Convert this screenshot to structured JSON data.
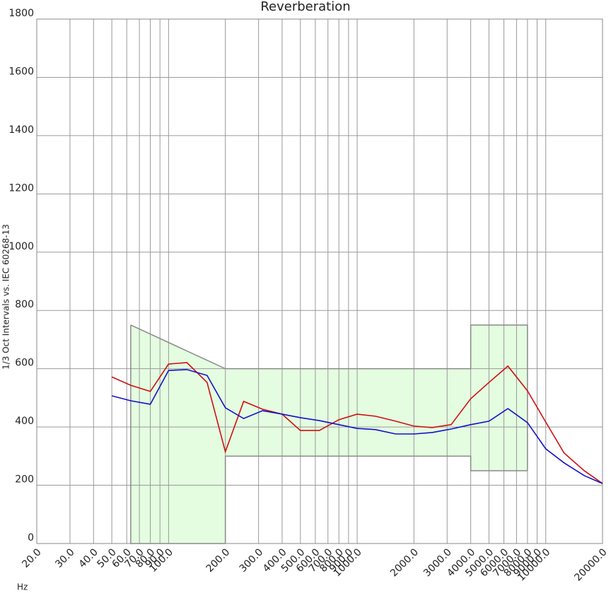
{
  "chart_data": {
    "type": "line",
    "title": "Reverberation",
    "y_label": "1/3 Oct Intervals vs. IEC 60268-13",
    "x_label": "Hz",
    "x": [
      50,
      63,
      80,
      100,
      125,
      160,
      200,
      250,
      315,
      400,
      500,
      630,
      800,
      1000,
      1250,
      1600,
      2000,
      2500,
      3150,
      4000,
      5000,
      6300,
      8000,
      10000,
      12500,
      16000,
      20000
    ],
    "series": [
      {
        "color": "#cc1111",
        "values": [
          572,
          543,
          522,
          616,
          621,
          553,
          315,
          488,
          461,
          444,
          388,
          388,
          425,
          444,
          437,
          420,
          403,
          398,
          408,
          497,
          553,
          609,
          524,
          417,
          311,
          250,
          206
        ]
      },
      {
        "color": "#1111cc",
        "values": [
          507,
          490,
          478,
          594,
          597,
          577,
          466,
          429,
          456,
          444,
          432,
          422,
          408,
          395,
          391,
          376,
          376,
          381,
          393,
          408,
          420,
          463,
          415,
          325,
          277,
          233,
          206
        ]
      }
    ],
    "tolerance_upper": {
      "x": [
        63,
        200,
        4000,
        4000,
        8000,
        8000
      ],
      "values": [
        750,
        600,
        600,
        750,
        750,
        250
      ]
    },
    "tolerance_lower": {
      "x": [
        63,
        63,
        200,
        200,
        4000,
        4000,
        8000
      ],
      "values": [
        750,
        0,
        0,
        300,
        300,
        250,
        250
      ]
    },
    "band_color": "#e4fce0",
    "xlog": true,
    "xlim": [
      20,
      20000
    ],
    "ylim": [
      0,
      1800
    ],
    "xticks": [
      {
        "value": 20,
        "label": "20.0"
      },
      {
        "value": 30,
        "label": "30.0"
      },
      {
        "value": 40,
        "label": "40.0"
      },
      {
        "value": 50,
        "label": "50.0"
      },
      {
        "value": 60,
        "label": "60.0"
      },
      {
        "value": 70,
        "label": "70.0"
      },
      {
        "value": 80,
        "label": "80.0"
      },
      {
        "value": 90,
        "label": "90.0"
      },
      {
        "value": 100,
        "label": "100.0"
      },
      {
        "value": 200,
        "label": "200.0"
      },
      {
        "value": 300,
        "label": "300.0"
      },
      {
        "value": 400,
        "label": "400.0"
      },
      {
        "value": 500,
        "label": "500.0"
      },
      {
        "value": 600,
        "label": "600.0"
      },
      {
        "value": 700,
        "label": "700.0"
      },
      {
        "value": 800,
        "label": "800.0"
      },
      {
        "value": 900,
        "label": "900.0"
      },
      {
        "value": 1000,
        "label": "1000.0"
      },
      {
        "value": 2000,
        "label": "2000.0"
      },
      {
        "value": 3000,
        "label": "3000.0"
      },
      {
        "value": 4000,
        "label": "4000.0"
      },
      {
        "value": 5000,
        "label": "5000.0"
      },
      {
        "value": 6000,
        "label": "6000.0"
      },
      {
        "value": 7000,
        "label": "7000.0"
      },
      {
        "value": 8000,
        "label": "8000.0"
      },
      {
        "value": 9000,
        "label": "9000.0"
      },
      {
        "value": 10000,
        "label": "10000.0"
      },
      {
        "value": 20000,
        "label": "20000.0"
      }
    ],
    "yticks": [
      0,
      200,
      400,
      600,
      800,
      1000,
      1200,
      1400,
      1600,
      1800
    ],
    "grid": true
  }
}
